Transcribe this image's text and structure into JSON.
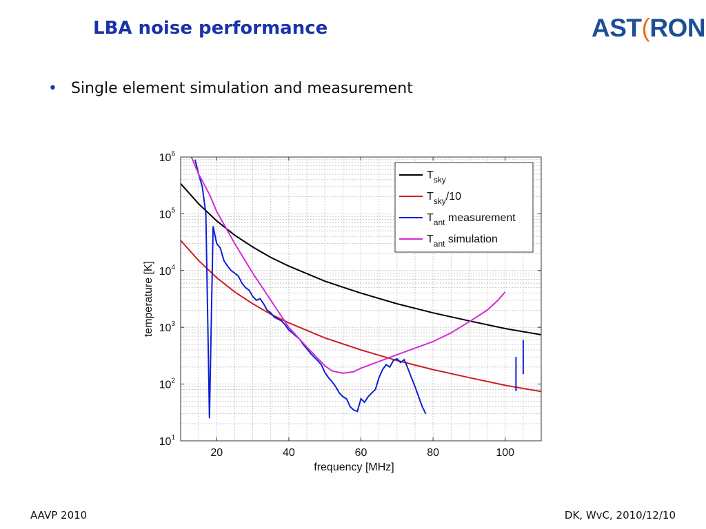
{
  "slide": {
    "title": "LBA noise performance",
    "bullet": "Single element simulation and measurement",
    "footer_left": "AAVP 2010",
    "footer_right": "DK, WvC, 2010/12/10"
  },
  "logo": {
    "text_left": "AST",
    "text_accent": "(",
    "text_right": "RON"
  },
  "colors": {
    "title": "#1a33a8",
    "logo": "#1c4f96",
    "logo_accent": "#e8731b"
  },
  "chart_data": {
    "type": "line",
    "xlabel": "frequency [MHz]",
    "ylabel": "temperature [K]",
    "xlim": [
      10,
      110
    ],
    "ylim": [
      10,
      1000000
    ],
    "yscale": "log",
    "grid": true,
    "legend_position": "top-right",
    "x_ticks": [
      20,
      40,
      60,
      80,
      100
    ],
    "y_ticks": [
      10,
      100,
      1000,
      10000,
      100000,
      1000000
    ],
    "y_tick_labels": [
      {
        "base": "10",
        "exp": "1"
      },
      {
        "base": "10",
        "exp": "2"
      },
      {
        "base": "10",
        "exp": "3"
      },
      {
        "base": "10",
        "exp": "4"
      },
      {
        "base": "10",
        "exp": "5"
      },
      {
        "base": "10",
        "exp": "6"
      }
    ],
    "series": [
      {
        "name": "T_sky",
        "legend": {
          "main": "T",
          "sub": "sky",
          "suffix": ""
        },
        "color": "#000000",
        "x": [
          10,
          15,
          20,
          25,
          30,
          35,
          40,
          50,
          60,
          70,
          80,
          90,
          100,
          110
        ],
        "y": [
          340000,
          150000,
          75000,
          42000,
          26000,
          17000,
          12000,
          6500,
          4000,
          2600,
          1800,
          1300,
          950,
          740
        ]
      },
      {
        "name": "T_sky/10",
        "legend": {
          "main": "T",
          "sub": "sky",
          "suffix": "/10"
        },
        "color": "#cc1f1f",
        "x": [
          10,
          15,
          20,
          25,
          30,
          35,
          40,
          50,
          60,
          70,
          80,
          90,
          100,
          110
        ],
        "y": [
          34000,
          15000,
          7500,
          4200,
          2600,
          1700,
          1200,
          650,
          400,
          260,
          180,
          130,
          95,
          74
        ]
      },
      {
        "name": "T_ant measurement",
        "legend": {
          "main": "T",
          "sub": "ant",
          "suffix": " measurement"
        },
        "color": "#0c1fd6",
        "x": [
          14,
          15,
          16,
          17,
          18,
          19,
          20,
          21,
          22,
          23,
          24,
          25,
          26,
          27,
          28,
          29,
          30,
          31,
          32,
          33,
          34,
          35,
          36,
          37,
          38,
          39,
          40,
          41,
          42,
          43,
          44,
          45,
          46,
          47,
          48,
          49,
          50,
          51,
          52,
          53,
          54,
          55,
          56,
          57,
          58,
          59,
          60,
          61,
          62,
          63,
          64,
          65,
          66,
          67,
          68,
          69,
          70,
          71,
          72,
          73,
          74,
          75,
          76,
          77,
          78,
          103,
          105
        ],
        "y": [
          900000,
          500000,
          300000,
          100000,
          25,
          60000,
          30000,
          25000,
          15000,
          12000,
          10000,
          9000,
          8000,
          6000,
          5000,
          4500,
          3500,
          3000,
          3200,
          2600,
          2000,
          1800,
          1500,
          1400,
          1300,
          1100,
          900,
          800,
          700,
          620,
          500,
          420,
          350,
          300,
          260,
          220,
          160,
          130,
          110,
          90,
          70,
          60,
          55,
          40,
          35,
          33,
          55,
          48,
          60,
          70,
          80,
          130,
          180,
          220,
          200,
          260,
          280,
          240,
          270,
          190,
          130,
          90,
          60,
          40,
          30,
          300,
          600
        ]
      },
      {
        "name": "T_ant simulation",
        "legend": {
          "main": "T",
          "sub": "ant",
          "suffix": " simulation"
        },
        "color": "#d42bd4",
        "x": [
          13,
          15,
          18,
          20,
          25,
          30,
          35,
          40,
          45,
          50,
          52,
          55,
          58,
          60,
          65,
          70,
          75,
          80,
          85,
          90,
          95,
          98,
          100
        ],
        "y": [
          1000000,
          500000,
          220000,
          110000,
          30000,
          9000,
          3000,
          1000,
          450,
          210,
          170,
          155,
          165,
          190,
          250,
          330,
          430,
          560,
          800,
          1250,
          2000,
          3000,
          4200
        ]
      }
    ]
  }
}
